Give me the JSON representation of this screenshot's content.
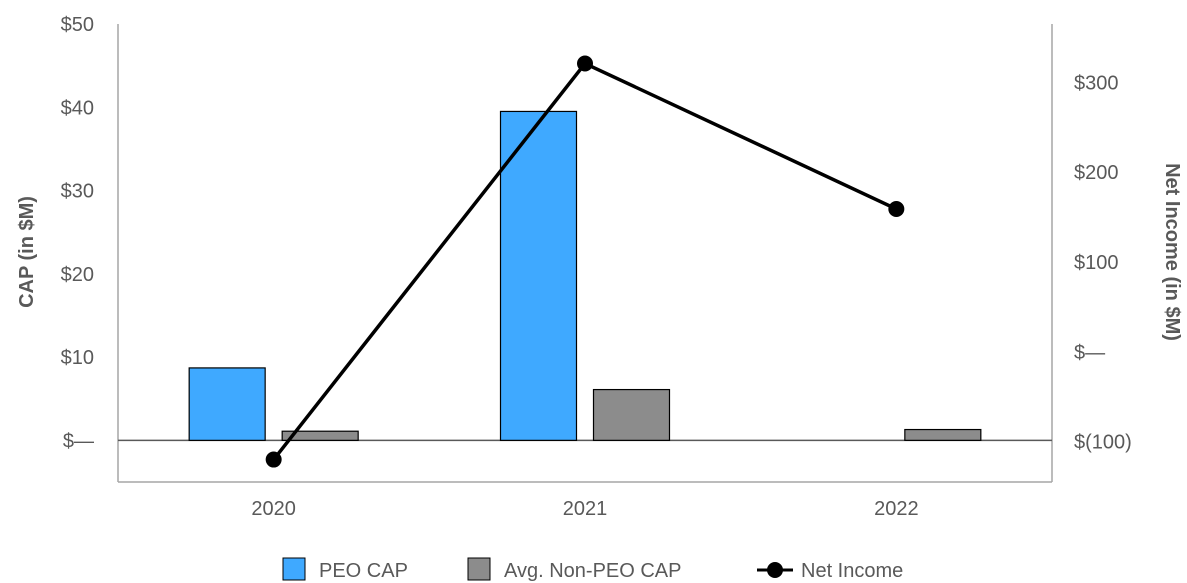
{
  "chart_data": {
    "type": "bar",
    "categories": [
      "2020",
      "2021",
      "2022"
    ],
    "series": [
      {
        "name": "PEO CAP",
        "kind": "bar",
        "axis": "left",
        "color": "#3fa9ff",
        "values": [
          8.7,
          39.5,
          0
        ]
      },
      {
        "name": "Avg. Non-PEO CAP",
        "kind": "bar",
        "axis": "left",
        "color": "#8c8c8c",
        "values": [
          1.1,
          6.1,
          1.3
        ]
      },
      {
        "name": "Net Income",
        "kind": "line",
        "axis": "right",
        "color": "#000000",
        "values": [
          -120,
          321,
          159
        ]
      }
    ],
    "ylabel": "CAP (in $M)",
    "y2label": "Net Income (in $M)",
    "ylim": [
      -5,
      50
    ],
    "y2lim": [
      -145,
      365
    ],
    "yticks": [
      {
        "value": 0,
        "label": "$—"
      },
      {
        "value": 10,
        "label": "$10"
      },
      {
        "value": 20,
        "label": "$20"
      },
      {
        "value": 30,
        "label": "$30"
      },
      {
        "value": 40,
        "label": "$40"
      },
      {
        "value": 50,
        "label": "$50"
      }
    ],
    "y2ticks": [
      {
        "value": -100,
        "label": "$(100)"
      },
      {
        "value": 0,
        "label": "$—"
      },
      {
        "value": 100,
        "label": "$100"
      },
      {
        "value": 200,
        "label": "$200"
      },
      {
        "value": 300,
        "label": "$300"
      }
    ],
    "grid": false,
    "legend_position": "bottom-center",
    "colors": {
      "axis": "#a6a6a6",
      "zero_line": "#595959",
      "text": "#595959"
    }
  }
}
